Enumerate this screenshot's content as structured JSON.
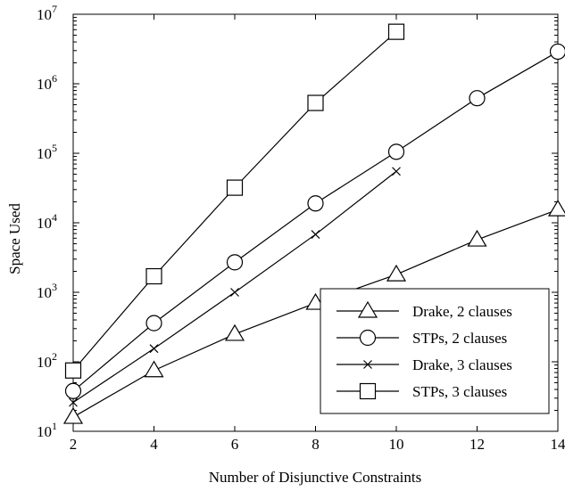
{
  "chart_data": {
    "type": "line",
    "title": "",
    "xlabel": "Number of Disjunctive Constraints",
    "ylabel": "Space Used",
    "xlim": [
      2,
      14
    ],
    "ylim": [
      10,
      10000000
    ],
    "yscale": "log",
    "x_ticks": [
      2,
      4,
      6,
      8,
      10,
      12,
      14
    ],
    "x_tick_labels": [
      "2",
      "4",
      "6",
      "8",
      "10",
      "12",
      "14"
    ],
    "y_ticks": [
      {
        "value": 10,
        "base": "10",
        "exp": "1"
      },
      {
        "value": 100,
        "base": "10",
        "exp": "2"
      },
      {
        "value": 1000,
        "base": "10",
        "exp": "3"
      },
      {
        "value": 10000,
        "base": "10",
        "exp": "4"
      },
      {
        "value": 100000,
        "base": "10",
        "exp": "5"
      },
      {
        "value": 1000000,
        "base": "10",
        "exp": "6"
      },
      {
        "value": 10000000,
        "base": "10",
        "exp": "7"
      }
    ],
    "grid": false,
    "legend_position": "bottom-right",
    "series": [
      {
        "name": "Drake, 2 clauses",
        "marker": "triangle",
        "x": [
          2,
          4,
          6,
          8,
          10,
          12,
          14
        ],
        "y": [
          16,
          75,
          250,
          700,
          1800,
          5700,
          15500
        ]
      },
      {
        "name": "STPs, 2 clauses",
        "marker": "circle",
        "x": [
          2,
          4,
          6,
          8,
          10,
          12,
          14
        ],
        "y": [
          38,
          360,
          2700,
          19000,
          105000,
          620000,
          2900000
        ]
      },
      {
        "name": "Drake, 3 clauses",
        "marker": "x",
        "x": [
          2,
          4,
          6,
          8,
          10
        ],
        "y": [
          26,
          155,
          1000,
          6800,
          55000
        ]
      },
      {
        "name": "STPs, 3 clauses",
        "marker": "square",
        "x": [
          2,
          4,
          6,
          8,
          10
        ],
        "y": [
          75,
          1700,
          32000,
          530000,
          5600000
        ]
      }
    ]
  }
}
